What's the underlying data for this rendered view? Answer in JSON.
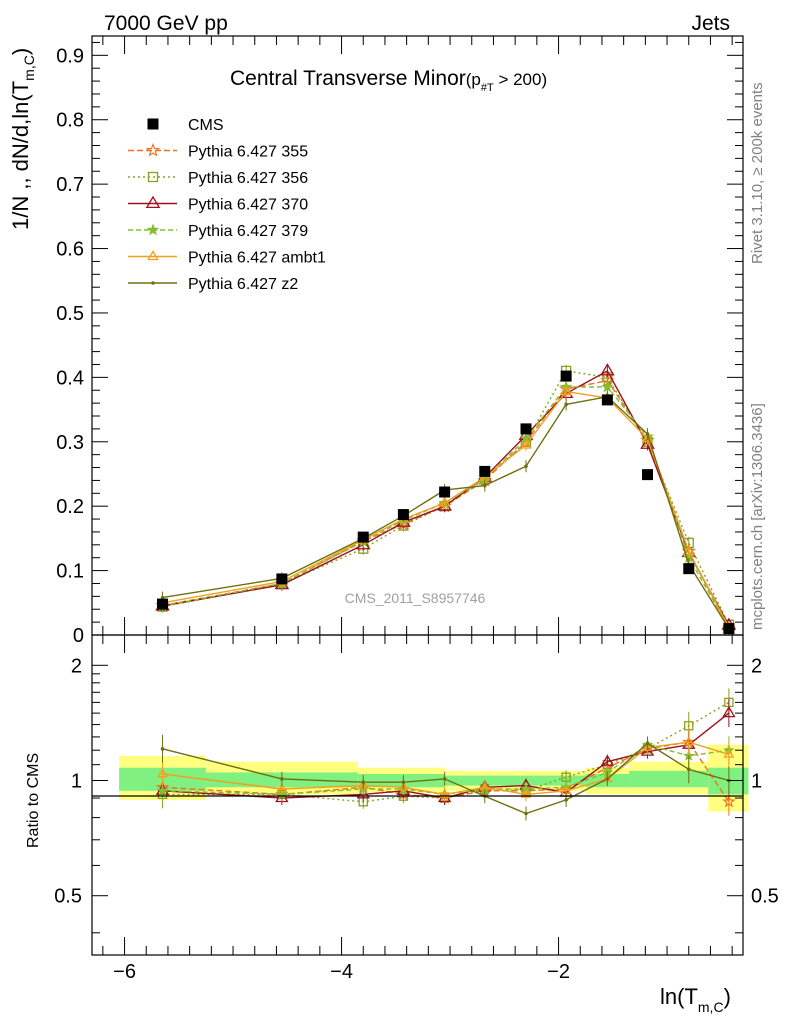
{
  "header": {
    "left": "7000 GeV pp",
    "right": "Jets"
  },
  "side": {
    "top": "Rivet 3.1.10, ≥ 200k events",
    "bottom": "mcplots.cern.ch [arXiv:1306.3436]"
  },
  "legend_title": {
    "main": "Central Transverse Minor",
    "sub_open": "(p",
    "sub_sub": "#T",
    "sub_close": " > 200)"
  },
  "watermark": "CMS_2011_S8957746",
  "chart_data": [
    {
      "type": "line",
      "panel": "main",
      "ylabel": "1/N ,, dN/d,ln(T_m,C)",
      "xlim": [
        -6.3,
        -0.3
      ],
      "ylim": [
        0,
        0.93
      ],
      "yticks": [
        0,
        0.1,
        0.2,
        0.3,
        0.4,
        0.5,
        0.6,
        0.7,
        0.8,
        0.9
      ],
      "ytick_labels": [
        "0",
        "0.1",
        "0.2",
        "0.3",
        "0.4",
        "0.5",
        "0.6",
        "0.7",
        "0.8",
        "0.9"
      ],
      "x": [
        -5.65,
        -4.55,
        -3.8,
        -3.43,
        -3.05,
        -2.68,
        -2.3,
        -1.93,
        -1.55,
        -1.18,
        -0.8,
        -0.43
      ],
      "series": [
        {
          "name": "CMS",
          "color": "#000000",
          "marker": "square-filled",
          "dash": "none",
          "values": [
            0.048,
            0.087,
            0.152,
            0.187,
            0.222,
            0.254,
            0.32,
            0.402,
            0.365,
            0.249,
            0.103,
            0.01
          ]
        },
        {
          "name": "Pythia 6.427 355",
          "color": "#f07020",
          "marker": "star-open",
          "dash": "6,3",
          "values": [
            0.046,
            0.08,
            0.146,
            0.172,
            0.2,
            0.24,
            0.3,
            0.382,
            0.395,
            0.302,
            0.13,
            0.009
          ]
        },
        {
          "name": "Pythia 6.427 356",
          "color": "#8aa020",
          "marker": "square-open",
          "dash": "2,3",
          "values": [
            0.044,
            0.08,
            0.134,
            0.17,
            0.2,
            0.242,
            0.3,
            0.41,
            0.4,
            0.3,
            0.143,
            0.016
          ]
        },
        {
          "name": "Pythia 6.427 370",
          "color": "#a01020",
          "marker": "triangle-open",
          "dash": "none",
          "values": [
            0.045,
            0.078,
            0.14,
            0.175,
            0.2,
            0.245,
            0.31,
            0.375,
            0.41,
            0.296,
            0.128,
            0.015
          ]
        },
        {
          "name": "Pythia 6.427 379",
          "color": "#80c030",
          "marker": "star-filled",
          "dash": "5,3",
          "values": [
            0.045,
            0.08,
            0.145,
            0.178,
            0.205,
            0.242,
            0.305,
            0.385,
            0.385,
            0.308,
            0.12,
            0.012
          ]
        },
        {
          "name": "Pythia 6.427 ambt1",
          "color": "#f0a020",
          "marker": "triangle-open-small",
          "dash": "none",
          "values": [
            0.05,
            0.083,
            0.148,
            0.18,
            0.205,
            0.245,
            0.295,
            0.378,
            0.368,
            0.305,
            0.13,
            0.012
          ]
        },
        {
          "name": "Pythia 6.427 z2",
          "color": "#707010",
          "marker": "dot",
          "dash": "none",
          "values": [
            0.058,
            0.088,
            0.15,
            0.185,
            0.225,
            0.232,
            0.262,
            0.358,
            0.37,
            0.312,
            0.11,
            0.01
          ]
        }
      ]
    },
    {
      "type": "line",
      "panel": "ratio",
      "ylabel": "Ratio to CMS",
      "xlabel": "ln(T_m,C)",
      "xlim": [
        -6.3,
        -0.3
      ],
      "ylim": [
        0.35,
        2.4
      ],
      "yticks": [
        0.5,
        1,
        2
      ],
      "ytick_labels": [
        "0.5",
        "1",
        "2"
      ],
      "xticks": [
        -6,
        -4,
        -2
      ],
      "xtick_labels": [
        "−6",
        "−4",
        "−2"
      ],
      "x": [
        -5.65,
        -4.55,
        -3.8,
        -3.43,
        -3.05,
        -2.68,
        -2.3,
        -1.93,
        -1.55,
        -1.18,
        -0.8,
        -0.43
      ],
      "band_edges": [
        -6.05,
        -5.25,
        -3.85,
        -3.05,
        -2.35,
        -1.75,
        -1.35,
        -0.62,
        -0.25
      ],
      "band_inner": [
        [
          0.94,
          1.08
        ],
        [
          0.96,
          1.05
        ],
        [
          0.96,
          1.04
        ],
        [
          0.97,
          1.03
        ],
        [
          0.97,
          1.03
        ],
        [
          0.96,
          1.04
        ],
        [
          0.96,
          1.06
        ],
        [
          0.92,
          1.08
        ]
      ],
      "band_outer": [
        [
          0.89,
          1.16
        ],
        [
          0.92,
          1.12
        ],
        [
          0.93,
          1.08
        ],
        [
          0.94,
          1.06
        ],
        [
          0.94,
          1.06
        ],
        [
          0.92,
          1.08
        ],
        [
          0.92,
          1.12
        ],
        [
          0.83,
          1.24
        ]
      ],
      "series": [
        {
          "name": "Pythia 6.427 355",
          "values": [
            0.96,
            0.92,
            0.96,
            0.92,
            0.9,
            0.94,
            0.94,
            0.95,
            1.08,
            1.21,
            1.26,
            0.88
          ]
        },
        {
          "name": "Pythia 6.427 356",
          "values": [
            0.92,
            0.92,
            0.88,
            0.91,
            0.9,
            0.95,
            0.94,
            1.02,
            1.1,
            1.21,
            1.39,
            1.6
          ]
        },
        {
          "name": "Pythia 6.427 370",
          "values": [
            0.94,
            0.9,
            0.92,
            0.94,
            0.9,
            0.96,
            0.97,
            0.93,
            1.12,
            1.19,
            1.24,
            1.5
          ]
        },
        {
          "name": "Pythia 6.427 379",
          "values": [
            0.94,
            0.92,
            0.95,
            0.95,
            0.92,
            0.95,
            0.95,
            0.96,
            1.05,
            1.24,
            1.16,
            1.2
          ]
        },
        {
          "name": "Pythia 6.427 ambt1",
          "values": [
            1.04,
            0.95,
            0.97,
            0.96,
            0.92,
            0.96,
            0.92,
            0.94,
            1.01,
            1.22,
            1.26,
            1.17
          ]
        },
        {
          "name": "Pythia 6.427 z2",
          "values": [
            1.21,
            1.01,
            0.99,
            0.99,
            1.01,
            0.91,
            0.82,
            0.89,
            1.01,
            1.25,
            1.07,
            1.0
          ]
        }
      ]
    }
  ]
}
